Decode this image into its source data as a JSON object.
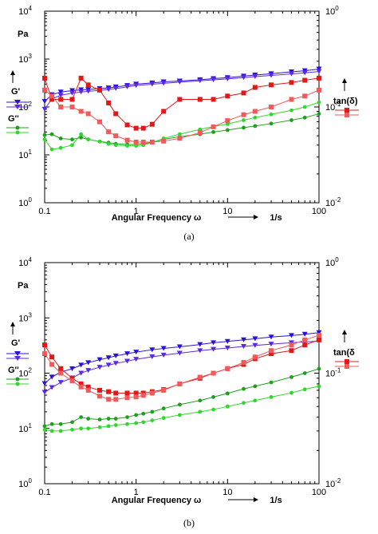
{
  "colors": {
    "gp1": "#2a10d8",
    "gp2": "#5a28e6",
    "gpp1": "#1ea01e",
    "gpp2": "#2ed82e",
    "tan1": "#e01818",
    "tan2": "#f05a5a"
  },
  "chart_data": [
    {
      "type": "line",
      "caption": "(a)",
      "xlabel": "Angular Frequency ω",
      "xunit": "1/s",
      "ylabel_left_unit": "Pa",
      "ylabel_right": "tan(δ)",
      "x_scale": "log",
      "y_left_scale": "log",
      "y_right_scale": "log",
      "xlim": [
        0.1,
        100
      ],
      "ylim_left": [
        1,
        10000
      ],
      "ylim_right": [
        0.01,
        1
      ],
      "x_ticks": [
        "0.1",
        "1",
        "10",
        "100"
      ],
      "y_left_ticks": [
        {
          "b": "10",
          "e": "0"
        },
        {
          "b": "10",
          "e": "1"
        },
        {
          "b": "10",
          "e": "2"
        },
        {
          "b": "10",
          "e": "3"
        },
        {
          "b": "10",
          "e": "4"
        }
      ],
      "y_right_ticks": [
        {
          "b": "10",
          "e": "-2"
        },
        {
          "b": "10",
          "e": "-1"
        },
        {
          "b": "10",
          "e": "0"
        }
      ],
      "legend": [
        {
          "label": "G'",
          "axis": "left"
        },
        {
          "label": "G''",
          "axis": "left"
        },
        {
          "label": "tan(δ)",
          "axis": "right"
        }
      ],
      "series": [
        {
          "name": "G'",
          "axis": "left",
          "marker": "triangle",
          "color_key": "gp1",
          "x": [
            0.1,
            0.12,
            0.15,
            0.2,
            0.25,
            0.3,
            0.4,
            0.5,
            0.6,
            0.8,
            1,
            1.5,
            2,
            3,
            5,
            7,
            10,
            15,
            20,
            30,
            50,
            70,
            100
          ],
          "y": [
            130,
            180,
            205,
            220,
            228,
            232,
            242,
            250,
            262,
            280,
            300,
            318,
            335,
            348,
            370,
            390,
            410,
            440,
            465,
            495,
            540,
            570,
            620
          ]
        },
        {
          "name": "G'",
          "axis": "left",
          "marker": "triangle",
          "color_key": "gp2",
          "x": [
            0.1,
            0.12,
            0.15,
            0.2,
            0.25,
            0.3,
            0.4,
            0.5,
            0.6,
            0.8,
            1,
            1.5,
            2,
            3,
            5,
            7,
            10,
            15,
            20,
            30,
            50,
            70,
            100
          ],
          "y": [
            90,
            148,
            175,
            195,
            205,
            212,
            222,
            232,
            243,
            262,
            280,
            298,
            312,
            330,
            352,
            368,
            385,
            410,
            430,
            455,
            490,
            515,
            550
          ]
        },
        {
          "name": "G''",
          "axis": "left",
          "marker": "circle",
          "color_key": "gpp1",
          "x": [
            0.1,
            0.12,
            0.15,
            0.2,
            0.25,
            0.3,
            0.4,
            0.5,
            0.6,
            0.8,
            1,
            1.2,
            1.5,
            2,
            3,
            5,
            7,
            10,
            15,
            20,
            30,
            50,
            70,
            100
          ],
          "y": [
            26,
            27,
            22,
            21,
            23,
            21,
            19,
            18,
            17,
            16.5,
            16.5,
            17,
            18.5,
            21,
            24,
            27,
            30,
            33,
            37,
            40,
            45,
            53,
            60,
            72
          ]
        },
        {
          "name": "G''",
          "axis": "left",
          "marker": "circle",
          "color_key": "gpp2",
          "x": [
            0.1,
            0.12,
            0.15,
            0.2,
            0.25,
            0.3,
            0.4,
            0.5,
            0.6,
            0.8,
            1,
            1.2,
            1.5,
            2,
            3,
            5,
            7,
            10,
            15,
            20,
            30,
            50,
            70,
            100
          ],
          "y": [
            21,
            13,
            14,
            16,
            27,
            21,
            19,
            17,
            16,
            15.5,
            15.5,
            16,
            18,
            22,
            27,
            34,
            39,
            44,
            53,
            60,
            70,
            85,
            100,
            125
          ]
        },
        {
          "name": "tan(δ)",
          "axis": "right",
          "marker": "square",
          "color_key": "tan1",
          "x": [
            0.1,
            0.12,
            0.15,
            0.2,
            0.25,
            0.3,
            0.4,
            0.5,
            0.6,
            0.8,
            1,
            1.2,
            1.5,
            2,
            3,
            5,
            7,
            10,
            15,
            20,
            30,
            50,
            70,
            100
          ],
          "y": [
            0.2,
            0.12,
            0.12,
            0.12,
            0.2,
            0.17,
            0.15,
            0.11,
            0.085,
            0.065,
            0.06,
            0.06,
            0.066,
            0.09,
            0.12,
            0.12,
            0.12,
            0.13,
            0.14,
            0.16,
            0.17,
            0.18,
            0.19,
            0.2
          ]
        },
        {
          "name": "tan(δ)",
          "axis": "right",
          "marker": "square",
          "color_key": "tan2",
          "x": [
            0.1,
            0.12,
            0.15,
            0.2,
            0.25,
            0.3,
            0.4,
            0.5,
            0.6,
            0.8,
            1,
            1.2,
            1.5,
            2,
            3,
            5,
            7,
            10,
            15,
            20,
            30,
            50,
            70,
            100
          ],
          "y": [
            0.15,
            0.13,
            0.1,
            0.1,
            0.09,
            0.085,
            0.07,
            0.055,
            0.05,
            0.045,
            0.043,
            0.043,
            0.043,
            0.044,
            0.047,
            0.054,
            0.062,
            0.072,
            0.083,
            0.09,
            0.1,
            0.12,
            0.13,
            0.15
          ]
        }
      ]
    },
    {
      "type": "line",
      "caption": "(b)",
      "xlabel": "Angular Frequency ω",
      "xunit": "1/s",
      "ylabel_left_unit": "Pa",
      "ylabel_right": "tan(δ",
      "x_scale": "log",
      "y_left_scale": "log",
      "y_right_scale": "log",
      "xlim": [
        0.1,
        100
      ],
      "ylim_left": [
        1,
        10000
      ],
      "ylim_right": [
        0.01,
        1
      ],
      "x_ticks": [
        "0.1",
        "1",
        "10",
        "100"
      ],
      "y_left_ticks": [
        {
          "b": "10",
          "e": "0"
        },
        {
          "b": "10",
          "e": "1"
        },
        {
          "b": "10",
          "e": "2"
        },
        {
          "b": "10",
          "e": "3"
        },
        {
          "b": "10",
          "e": "4"
        }
      ],
      "y_right_ticks": [
        {
          "b": "10",
          "e": "-2"
        },
        {
          "b": "10",
          "e": "-1"
        },
        {
          "b": "10",
          "e": "0"
        }
      ],
      "legend": [
        {
          "label": "G'",
          "axis": "left"
        },
        {
          "label": "G''",
          "axis": "left"
        },
        {
          "label": "tan(δ",
          "axis": "right"
        }
      ],
      "series": [
        {
          "name": "G'",
          "axis": "left",
          "marker": "triangle",
          "color_key": "gp1",
          "x": [
            0.1,
            0.12,
            0.15,
            0.2,
            0.25,
            0.3,
            0.4,
            0.5,
            0.6,
            0.8,
            1,
            1.5,
            2,
            3,
            5,
            7,
            10,
            15,
            20,
            30,
            50,
            70,
            100
          ],
          "y": [
            65,
            85,
            105,
            120,
            140,
            155,
            175,
            190,
            205,
            225,
            240,
            265,
            280,
            300,
            330,
            355,
            375,
            400,
            420,
            450,
            480,
            505,
            540
          ]
        },
        {
          "name": "G'",
          "axis": "left",
          "marker": "triangle",
          "color_key": "gp2",
          "x": [
            0.1,
            0.12,
            0.15,
            0.2,
            0.25,
            0.3,
            0.4,
            0.5,
            0.6,
            0.8,
            1,
            1.5,
            2,
            3,
            5,
            7,
            10,
            15,
            20,
            30,
            50,
            70,
            100
          ],
          "y": [
            45,
            55,
            68,
            82,
            100,
            112,
            128,
            140,
            150,
            165,
            178,
            198,
            212,
            230,
            255,
            270,
            285,
            305,
            318,
            335,
            355,
            368,
            380
          ]
        },
        {
          "name": "G''",
          "axis": "left",
          "marker": "circle",
          "color_key": "gpp1",
          "x": [
            0.1,
            0.12,
            0.15,
            0.2,
            0.25,
            0.3,
            0.4,
            0.5,
            0.6,
            0.8,
            1,
            1.2,
            1.5,
            2,
            3,
            5,
            7,
            10,
            15,
            20,
            30,
            50,
            70,
            100
          ],
          "y": [
            11,
            12,
            12,
            13,
            16,
            15,
            14.5,
            15,
            15,
            16,
            17.5,
            18.5,
            20,
            23,
            27,
            32,
            37,
            43,
            52,
            58,
            68,
            85,
            100,
            120
          ]
        },
        {
          "name": "G''",
          "axis": "left",
          "marker": "circle",
          "color_key": "gpp2",
          "x": [
            0.1,
            0.12,
            0.15,
            0.2,
            0.25,
            0.3,
            0.4,
            0.5,
            0.6,
            0.8,
            1,
            1.2,
            1.5,
            2,
            3,
            5,
            7,
            10,
            15,
            20,
            30,
            50,
            70,
            100
          ],
          "y": [
            9.5,
            9,
            9,
            9.5,
            10,
            10,
            10.5,
            11,
            11.5,
            12,
            12.5,
            13,
            14,
            15.5,
            17.5,
            20,
            22,
            25,
            29,
            32,
            37,
            44,
            51,
            58
          ]
        },
        {
          "name": "tan(δ)",
          "axis": "right",
          "marker": "square",
          "color_key": "tan1",
          "x": [
            0.1,
            0.12,
            0.15,
            0.2,
            0.25,
            0.3,
            0.4,
            0.5,
            0.6,
            0.8,
            1,
            1.2,
            1.5,
            2,
            3,
            5,
            7,
            10,
            15,
            20,
            30,
            50,
            70,
            100
          ],
          "y": [
            0.18,
            0.14,
            0.11,
            0.09,
            0.08,
            0.075,
            0.07,
            0.068,
            0.066,
            0.066,
            0.066,
            0.066,
            0.068,
            0.071,
            0.08,
            0.09,
            0.1,
            0.11,
            0.12,
            0.135,
            0.15,
            0.16,
            0.18,
            0.2
          ]
        },
        {
          "name": "tan(δ)",
          "axis": "right",
          "marker": "square",
          "color_key": "tan2",
          "x": [
            0.1,
            0.12,
            0.15,
            0.2,
            0.25,
            0.3,
            0.4,
            0.5,
            0.6,
            0.8,
            1,
            1.2,
            1.5,
            2,
            3,
            5,
            7,
            10,
            15,
            20,
            30,
            50,
            70,
            100
          ],
          "y": [
            0.15,
            0.12,
            0.1,
            0.085,
            0.075,
            0.07,
            0.062,
            0.058,
            0.058,
            0.06,
            0.061,
            0.063,
            0.066,
            0.07,
            0.08,
            0.092,
            0.1,
            0.11,
            0.125,
            0.14,
            0.16,
            0.18,
            0.2,
            0.22
          ]
        }
      ]
    }
  ]
}
